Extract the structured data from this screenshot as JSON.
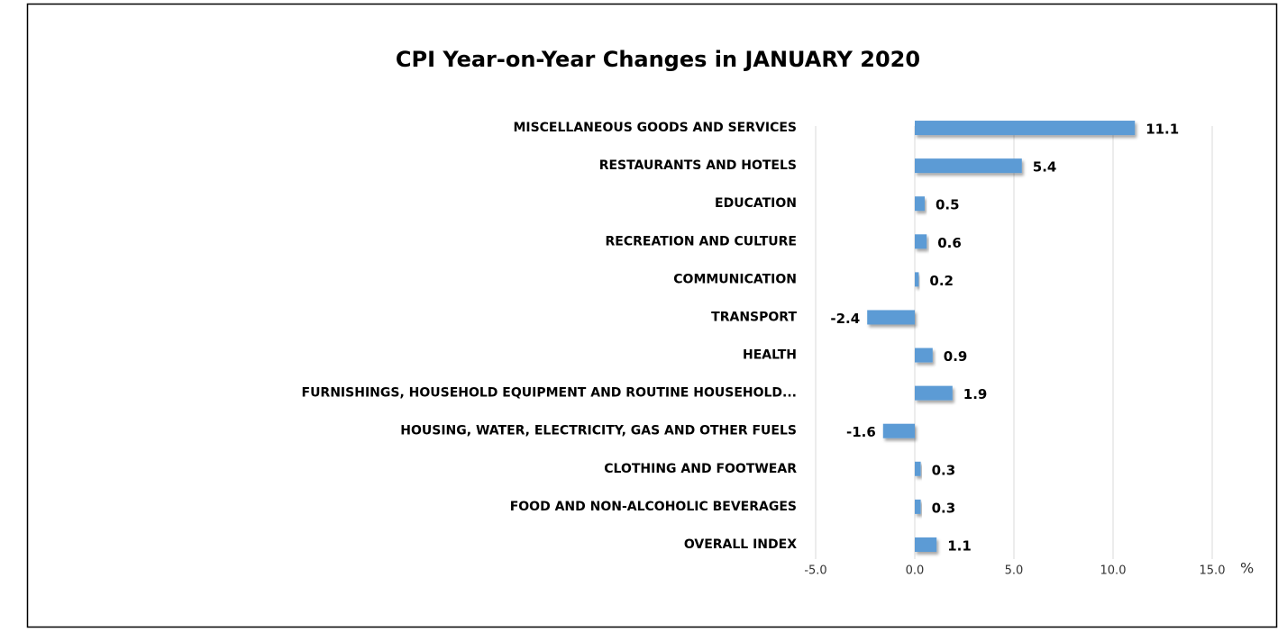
{
  "chart_data": {
    "type": "bar",
    "orientation": "horizontal",
    "title": "CPI Year-on-Year Changes in JANUARY 2020",
    "x_label": "%",
    "categories": [
      "MISCELLANEOUS GOODS AND SERVICES",
      "RESTAURANTS AND HOTELS",
      "EDUCATION",
      "RECREATION AND CULTURE",
      "COMMUNICATION",
      "TRANSPORT",
      "HEALTH",
      "FURNISHINGS, HOUSEHOLD EQUIPMENT AND ROUTINE HOUSEHOLD...",
      "HOUSING, WATER, ELECTRICITY, GAS AND OTHER FUELS",
      "CLOTHING AND FOOTWEAR",
      "FOOD AND NON-ALCOHOLIC BEVERAGES",
      "OVERALL INDEX"
    ],
    "values": [
      11.1,
      5.4,
      0.5,
      0.6,
      0.2,
      -2.4,
      0.9,
      1.9,
      -1.6,
      0.3,
      0.3,
      1.1
    ],
    "color": "#5b9bd5",
    "xlim": [
      -5,
      15
    ],
    "xticks": [
      {
        "value": -5,
        "label": "-5.0"
      },
      {
        "value": 0,
        "label": "0.0"
      },
      {
        "value": 5,
        "label": "5.0"
      },
      {
        "value": 10,
        "label": "10.0"
      },
      {
        "value": 15,
        "label": "15.0"
      }
    ],
    "grid": true
  }
}
